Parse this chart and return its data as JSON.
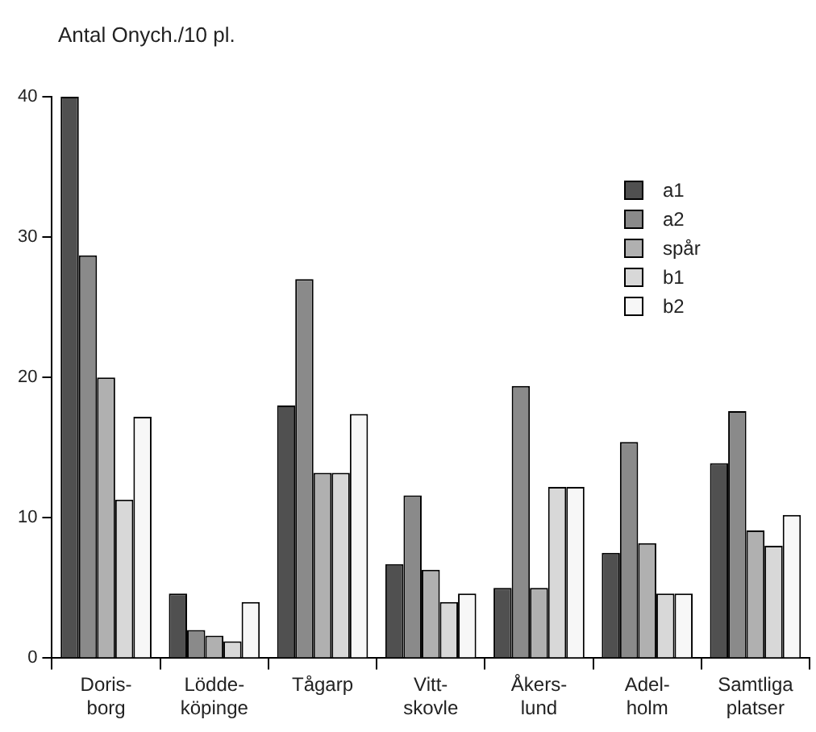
{
  "chart_data": {
    "type": "bar",
    "title": "Antal Onych./10 pl.",
    "categories": [
      "Doris-\nborg",
      "Lödde-\nköpinge",
      "Tågarp",
      "Vitt-\nskovle",
      "Åkers-\nlund",
      "Adel-\nholm",
      "Samtliga\nplatser"
    ],
    "series": [
      {
        "name": "a1",
        "color": "#505050",
        "values": [
          40,
          4.6,
          18,
          6.7,
          5,
          7.5,
          13.9
        ]
      },
      {
        "name": "a2",
        "color": "#8a8a8a",
        "values": [
          28.7,
          2,
          27,
          11.6,
          19.4,
          15.4,
          17.6
        ]
      },
      {
        "name": "spår",
        "color": "#b0b0b0",
        "values": [
          20,
          1.6,
          13.2,
          6.3,
          5,
          8.2,
          9.1
        ]
      },
      {
        "name": "b1",
        "color": "#d8d8d8",
        "values": [
          11.3,
          1.2,
          13.2,
          4,
          12.2,
          4.6,
          8
        ]
      },
      {
        "name": "b2",
        "color": "#f7f7f7",
        "values": [
          17.2,
          4,
          17.4,
          4.6,
          12.2,
          4.6,
          10.2
        ]
      }
    ],
    "ylim": [
      0,
      40
    ],
    "yticks": [
      0,
      10,
      20,
      30,
      40
    ],
    "grid": false,
    "legend": "top right"
  }
}
